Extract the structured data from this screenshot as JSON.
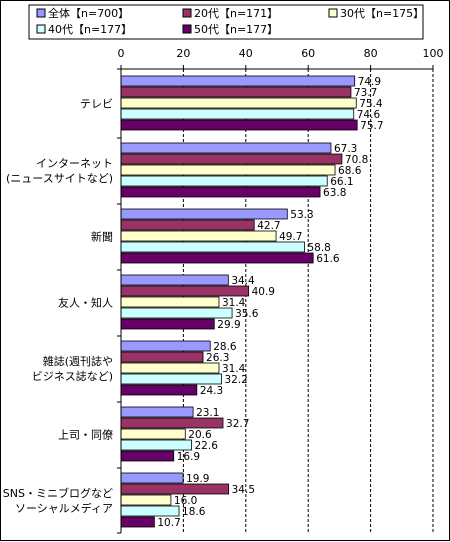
{
  "chart_data": {
    "type": "bar",
    "orientation": "horizontal",
    "xlim": [
      0,
      100
    ],
    "xticks": [
      0,
      20,
      40,
      60,
      80,
      100
    ],
    "grid": "vertical dashed",
    "legend_position": "top",
    "categories": [
      [
        "テレビ"
      ],
      [
        "インターネット",
        "(ニュースサイトなど)"
      ],
      [
        "新聞"
      ],
      [
        "友人・知人"
      ],
      [
        "雑誌(週刊誌や",
        "ビジネス誌など)"
      ],
      [
        "上司・同僚"
      ],
      [
        "SNS・ミニブログなど",
        "ソーシャルメディア"
      ]
    ],
    "series": [
      {
        "name": "全体【n=700】",
        "color": "#9999ff",
        "values": [
          74.9,
          67.3,
          53.3,
          34.4,
          28.6,
          23.1,
          19.9
        ]
      },
      {
        "name": "20代【n=171】",
        "color": "#993366",
        "values": [
          73.7,
          70.8,
          42.7,
          40.9,
          26.3,
          32.7,
          34.5
        ]
      },
      {
        "name": "30代【n=175】",
        "color": "#ffffcc",
        "values": [
          75.4,
          68.6,
          49.7,
          31.4,
          31.4,
          20.6,
          16.0
        ]
      },
      {
        "name": "40代【n=177】",
        "color": "#ccffff",
        "values": [
          74.6,
          66.1,
          58.8,
          35.6,
          32.2,
          22.6,
          18.6
        ]
      },
      {
        "name": "50代【n=177】",
        "color": "#660066",
        "values": [
          75.7,
          63.8,
          61.6,
          29.9,
          24.3,
          16.9,
          10.7
        ]
      }
    ]
  }
}
